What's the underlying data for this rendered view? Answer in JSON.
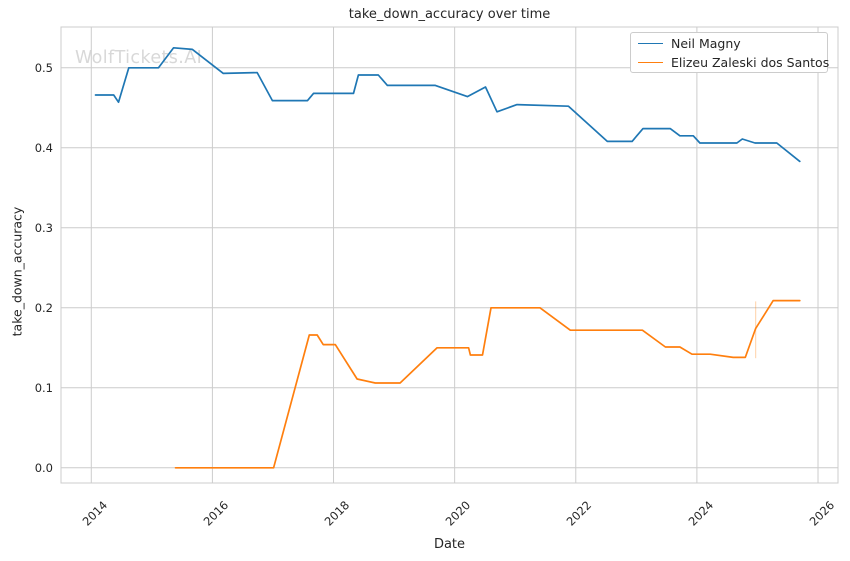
{
  "figure": {
    "title": "take_down_accuracy over time",
    "xlabel": "Date",
    "ylabel": "take_down_accuracy",
    "watermark": "WolfTickets.AI"
  },
  "colors": {
    "blue": "#1f77b4",
    "orange": "#ff7f0e",
    "grid": "#cccccc",
    "spine": "#cccccc",
    "text": "#262626",
    "watermark": "#d8d8d8"
  },
  "chart_data": {
    "type": "line",
    "title": "take_down_accuracy over time",
    "xlabel": "Date",
    "ylabel": "take_down_accuracy",
    "grid": true,
    "legend_position": "upper right",
    "xlim": [
      2013.5,
      2026.33
    ],
    "ylim": [
      -0.019,
      0.551
    ],
    "x_ticks": [
      {
        "value": 2014,
        "label": "2014"
      },
      {
        "value": 2016,
        "label": "2016"
      },
      {
        "value": 2018,
        "label": "2018"
      },
      {
        "value": 2020,
        "label": "2020"
      },
      {
        "value": 2022,
        "label": "2022"
      },
      {
        "value": 2024,
        "label": "2024"
      },
      {
        "value": 2026,
        "label": "2026"
      }
    ],
    "y_ticks": [
      {
        "value": 0.0,
        "label": "0.0"
      },
      {
        "value": 0.1,
        "label": "0.1"
      },
      {
        "value": 0.2,
        "label": "0.2"
      },
      {
        "value": 0.3,
        "label": "0.3"
      },
      {
        "value": 0.4,
        "label": "0.4"
      },
      {
        "value": 0.5,
        "label": "0.5"
      }
    ],
    "series": [
      {
        "name": "Neil Magny",
        "color": "#1f77b4",
        "points": [
          [
            2014.07,
            0.466
          ],
          [
            2014.37,
            0.466
          ],
          [
            2014.45,
            0.457
          ],
          [
            2014.62,
            0.5
          ],
          [
            2015.11,
            0.5
          ],
          [
            2015.36,
            0.525
          ],
          [
            2015.67,
            0.523
          ],
          [
            2016.18,
            0.493
          ],
          [
            2016.74,
            0.494
          ],
          [
            2016.99,
            0.459
          ],
          [
            2017.57,
            0.459
          ],
          [
            2017.67,
            0.468
          ],
          [
            2018.33,
            0.468
          ],
          [
            2018.41,
            0.491
          ],
          [
            2018.74,
            0.491
          ],
          [
            2018.89,
            0.478
          ],
          [
            2019.68,
            0.478
          ],
          [
            2020.21,
            0.464
          ],
          [
            2020.51,
            0.476
          ],
          [
            2020.7,
            0.445
          ],
          [
            2021.03,
            0.454
          ],
          [
            2021.88,
            0.452
          ],
          [
            2022.52,
            0.408
          ],
          [
            2022.93,
            0.408
          ],
          [
            2023.11,
            0.424
          ],
          [
            2023.56,
            0.424
          ],
          [
            2023.72,
            0.415
          ],
          [
            2023.94,
            0.415
          ],
          [
            2024.05,
            0.406
          ],
          [
            2024.66,
            0.406
          ],
          [
            2024.75,
            0.411
          ],
          [
            2024.96,
            0.406
          ],
          [
            2025.32,
            0.406
          ],
          [
            2025.7,
            0.383
          ]
        ]
      },
      {
        "name": "Elizeu Zaleski dos Santos",
        "color": "#ff7f0e",
        "points": [
          [
            2015.39,
            0.0
          ],
          [
            2017.01,
            0.0
          ],
          [
            2017.6,
            0.166
          ],
          [
            2017.73,
            0.166
          ],
          [
            2017.83,
            0.154
          ],
          [
            2018.03,
            0.154
          ],
          [
            2018.39,
            0.111
          ],
          [
            2018.69,
            0.106
          ],
          [
            2019.1,
            0.106
          ],
          [
            2019.71,
            0.15
          ],
          [
            2020.23,
            0.15
          ],
          [
            2020.26,
            0.141
          ],
          [
            2020.46,
            0.141
          ],
          [
            2020.6,
            0.2
          ],
          [
            2021.41,
            0.2
          ],
          [
            2021.91,
            0.172
          ],
          [
            2023.1,
            0.172
          ],
          [
            2023.48,
            0.151
          ],
          [
            2023.72,
            0.151
          ],
          [
            2023.92,
            0.142
          ],
          [
            2024.22,
            0.142
          ],
          [
            2024.6,
            0.138
          ],
          [
            2024.8,
            0.138
          ],
          [
            2024.97,
            0.174
          ],
          [
            2025.26,
            0.209
          ],
          [
            2025.7,
            0.209
          ]
        ]
      }
    ],
    "annotation_marker": {
      "x": 2024.97,
      "y_from": 0.137,
      "y_to": 0.208,
      "color": "rgba(255,127,14,0.3)"
    }
  }
}
